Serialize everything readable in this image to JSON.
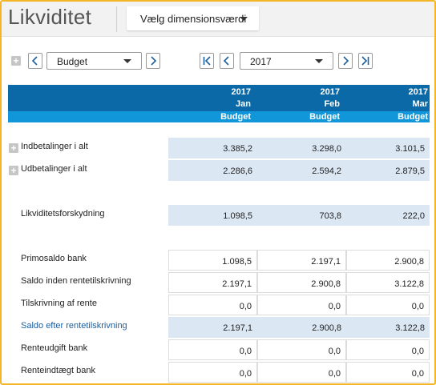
{
  "app": {
    "title": "Likviditet"
  },
  "dimension_button": {
    "label": "Vælg dimensionsværdi"
  },
  "toolbar": {
    "scenario_value": "Budget",
    "year_value": "2017"
  },
  "colors": {
    "header_band": "#0b69a7",
    "sub_band": "#1296da",
    "shaded_cell": "#dce7f4",
    "frame_border": "#f5b529",
    "link_text": "#1b5fa0"
  },
  "columns": [
    {
      "year": "2017",
      "month": "Jan",
      "type": "Budget"
    },
    {
      "year": "2017",
      "month": "Feb",
      "type": "Budget"
    },
    {
      "year": "2017",
      "month": "Mar",
      "type": "Budget"
    }
  ],
  "rows": [
    {
      "label": "Indbetalinger i alt",
      "values": [
        "3.385,2",
        "3.298,0",
        "3.101,5"
      ],
      "expandable": true
    },
    {
      "label": "Udbetalinger i alt",
      "values": [
        "2.286,6",
        "2.594,2",
        "2.879,5"
      ],
      "expandable": true
    },
    {
      "label": "Likviditetsforskydning",
      "values": [
        "1.098,5",
        "703,8",
        "222,0"
      ]
    },
    {
      "label": "Primosaldo bank",
      "values": [
        "1.098,5",
        "2.197,1",
        "2.900,8"
      ]
    },
    {
      "label": "Saldo inden rentetilskrivning",
      "values": [
        "2.197,1",
        "2.900,8",
        "3.122,8"
      ]
    },
    {
      "label": "Tilskrivning af rente",
      "values": [
        "0,0",
        "0,0",
        "0,0"
      ]
    },
    {
      "label": "Saldo efter rentetilskrivning",
      "values": [
        "2.197,1",
        "2.900,8",
        "3.122,8"
      ],
      "highlight": true
    },
    {
      "label": "Renteudgift bank",
      "values": [
        "0,0",
        "0,0",
        "0,0"
      ]
    },
    {
      "label": "Renteindtægt bank",
      "values": [
        "0,0",
        "0,0",
        "0,0"
      ]
    }
  ]
}
